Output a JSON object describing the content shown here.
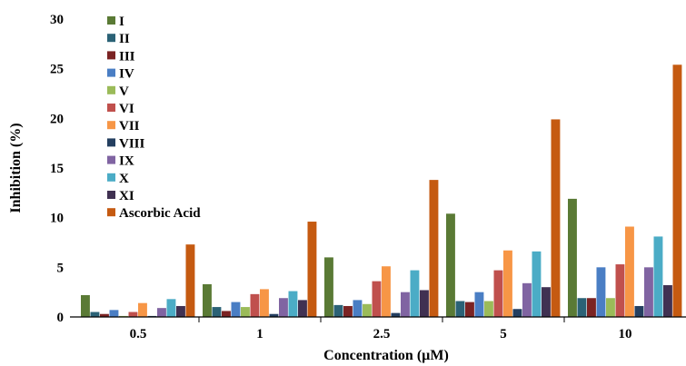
{
  "chart_data": {
    "type": "bar",
    "title": "",
    "xlabel": "Concentration (µM)",
    "ylabel": "Inhibition (%)",
    "ylim": [
      0,
      30
    ],
    "yticks": [
      0,
      5,
      10,
      15,
      20,
      25,
      30
    ],
    "grid": false,
    "legend_position": "top-left",
    "categories": [
      "0.5",
      "1",
      "2.5",
      "5",
      "10"
    ],
    "series": [
      {
        "name": "I",
        "color": "#5a7a35",
        "values": [
          2.2,
          3.3,
          6.0,
          10.4,
          11.9
        ]
      },
      {
        "name": "II",
        "color": "#2b6276",
        "values": [
          0.5,
          1.0,
          1.2,
          1.6,
          1.9
        ]
      },
      {
        "name": "III",
        "color": "#7b2323",
        "values": [
          0.3,
          0.6,
          1.1,
          1.5,
          1.9
        ]
      },
      {
        "name": "IV",
        "color": "#4a7ec4",
        "values": [
          0.7,
          1.5,
          1.7,
          2.5,
          5.0
        ]
      },
      {
        "name": "V",
        "color": "#9bbb59",
        "values": [
          0.1,
          1.0,
          1.3,
          1.6,
          1.9
        ]
      },
      {
        "name": "VI",
        "color": "#c0504d",
        "values": [
          0.5,
          2.3,
          3.6,
          4.7,
          5.3
        ]
      },
      {
        "name": "VII",
        "color": "#f79646",
        "values": [
          1.4,
          2.8,
          5.1,
          6.7,
          9.1
        ]
      },
      {
        "name": "VIII",
        "color": "#243f60",
        "values": [
          0.1,
          0.3,
          0.4,
          0.8,
          1.1
        ]
      },
      {
        "name": "IX",
        "color": "#8064a2",
        "values": [
          0.9,
          1.9,
          2.5,
          3.4,
          5.0
        ]
      },
      {
        "name": "X",
        "color": "#4bacc6",
        "values": [
          1.8,
          2.6,
          4.7,
          6.6,
          8.1
        ]
      },
      {
        "name": "XI",
        "color": "#403152",
        "values": [
          1.1,
          1.7,
          2.7,
          3.0,
          3.2
        ]
      },
      {
        "name": "Ascorbic Acid",
        "color": "#c55a11",
        "values": [
          7.3,
          9.6,
          13.8,
          19.9,
          25.4
        ]
      }
    ]
  }
}
